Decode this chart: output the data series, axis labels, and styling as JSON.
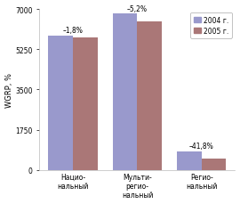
{
  "categories": [
    "Нацио-\nнальный",
    "Мульти-\nрегио-\nнальный",
    "Регио-\nнальный"
  ],
  "values_2004": [
    5850,
    6800,
    820
  ],
  "values_2005": [
    5750,
    6450,
    480
  ],
  "labels": [
    "–1,8%",
    "–5,2%",
    "–41,8%"
  ],
  "color_2004": "#9999CC",
  "color_2005": "#AA7777",
  "ylabel": "WGRP, %",
  "ylim": [
    0,
    7000
  ],
  "yticks": [
    0,
    1750,
    3500,
    5250,
    7000
  ],
  "legend_2004": "2004 г.",
  "legend_2005": "2005 г.",
  "bar_width": 0.38,
  "background_color": "#ffffff"
}
